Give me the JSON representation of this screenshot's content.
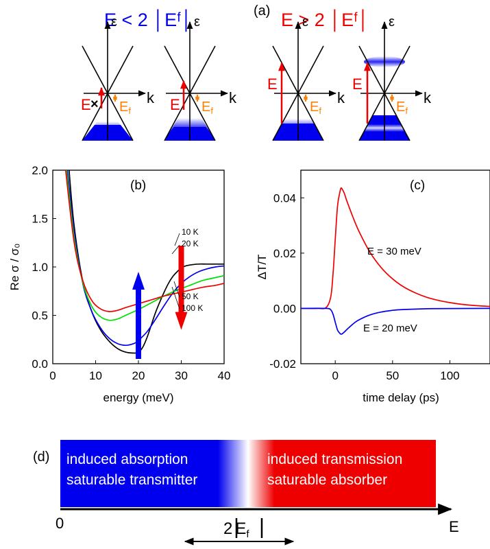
{
  "colors": {
    "blue": "#0000ee",
    "red": "#ee0000",
    "orange": "#ff7f00",
    "green": "#00dd00",
    "black": "#000000"
  },
  "panel_a": {
    "label": "(a)",
    "left_title": "E < 2 │Eᶠ│",
    "right_title": "E > 2 │Eᶠ│",
    "energy_axis": "ε",
    "momentum_axis": "k",
    "photon_label": "E",
    "fermi_label": "E",
    "fermi_sub": "f",
    "blocked_mark": "×"
  },
  "panel_d": {
    "label": "(d)",
    "left_line1": "induced absorption",
    "left_line2": "saturable transmitter",
    "right_line1": "induced transmission",
    "right_line2": "saturable absorber",
    "axis_start": "0",
    "axis_end": "E",
    "marker": "2",
    "marker_sym": "E",
    "marker_sub": "f"
  },
  "chart_data": [
    {
      "type": "line",
      "panel": "(b)",
      "xlabel": "energy (meV)",
      "ylabel": "Re σ / σ₀",
      "xlim": [
        0,
        40
      ],
      "ylim": [
        0.0,
        2.0
      ],
      "xticks": [
        "0",
        "10",
        "20",
        "30",
        "40"
      ],
      "yticks": [
        "0.0",
        "0.5",
        "1.0",
        "1.5",
        "2.0"
      ],
      "series": [
        {
          "name": "10 K",
          "color": "#000000",
          "x": [
            3.8,
            5,
            7,
            9,
            11,
            13,
            15,
            17,
            19,
            20,
            21,
            22,
            23,
            24,
            25,
            26,
            27,
            28,
            29,
            30,
            31,
            32,
            34,
            36,
            40
          ],
          "y": [
            2.0,
            1.42,
            0.85,
            0.55,
            0.36,
            0.24,
            0.16,
            0.12,
            0.11,
            0.12,
            0.17,
            0.27,
            0.4,
            0.53,
            0.64,
            0.74,
            0.83,
            0.9,
            0.95,
            0.99,
            1.01,
            1.02,
            1.03,
            1.03,
            1.03
          ]
        },
        {
          "name": "20 K",
          "color": "#0000ee",
          "x": [
            3.4,
            5,
            7,
            9,
            11,
            13,
            15,
            17,
            19,
            20,
            22,
            24,
            26,
            28,
            30,
            32,
            34,
            36,
            38,
            40
          ],
          "y": [
            2.0,
            1.36,
            0.83,
            0.55,
            0.38,
            0.27,
            0.21,
            0.19,
            0.21,
            0.24,
            0.33,
            0.46,
            0.6,
            0.73,
            0.83,
            0.9,
            0.95,
            0.98,
            1.0,
            1.01
          ]
        },
        {
          "name": "50 K",
          "color": "#00dd00",
          "x": [
            3.2,
            5,
            7,
            9,
            11,
            13,
            15,
            17,
            20,
            23,
            26,
            29,
            32,
            35,
            38,
            40
          ],
          "y": [
            2.0,
            1.3,
            0.84,
            0.6,
            0.49,
            0.45,
            0.46,
            0.5,
            0.56,
            0.63,
            0.7,
            0.76,
            0.81,
            0.86,
            0.89,
            0.91
          ]
        },
        {
          "name": "100 K",
          "color": "#ee0000",
          "x": [
            3.0,
            5,
            7,
            9,
            11,
            13,
            15,
            17,
            20,
            23,
            26,
            29,
            32,
            35,
            38,
            40
          ],
          "y": [
            2.0,
            1.25,
            0.86,
            0.66,
            0.57,
            0.54,
            0.55,
            0.58,
            0.62,
            0.66,
            0.7,
            0.73,
            0.76,
            0.79,
            0.81,
            0.83
          ]
        }
      ],
      "annotations": [
        {
          "text": "up arrow",
          "color": "#0000ee",
          "x": 20,
          "y_from": 0.05,
          "y_to": 0.95
        },
        {
          "text": "down arrow",
          "color": "#ee0000",
          "x": 30,
          "y_from": 1.22,
          "y_to": 0.35
        }
      ]
    },
    {
      "type": "line",
      "panel": "(c)",
      "xlabel": "time delay (ps)",
      "ylabel": "ΔT/T",
      "xlim": [
        -30,
        135
      ],
      "ylim": [
        -0.02,
        0.05
      ],
      "xticks": [
        "0",
        "50",
        "100"
      ],
      "yticks": [
        "-0.02",
        "0.00",
        "0.02",
        "0.04"
      ],
      "series": [
        {
          "name": "E = 30 meV",
          "color": "#ee0000",
          "x": [
            -30,
            -15,
            -8,
            -4,
            -2,
            0,
            2,
            4,
            5,
            6,
            8,
            10,
            15,
            20,
            30,
            40,
            50,
            60,
            70,
            80,
            90,
            100,
            110,
            120,
            135
          ],
          "y": [
            0,
            0,
            0.0003,
            0.004,
            0.012,
            0.025,
            0.037,
            0.042,
            0.0435,
            0.0432,
            0.0415,
            0.039,
            0.0335,
            0.0285,
            0.0205,
            0.0148,
            0.0107,
            0.0077,
            0.0056,
            0.004,
            0.0029,
            0.0021,
            0.0015,
            0.0011,
            0.0007
          ]
        },
        {
          "name": "E = 20 meV",
          "color": "#0000ee",
          "x": [
            -30,
            -8,
            -4,
            -2,
            0,
            2,
            4,
            5,
            6,
            8,
            10,
            15,
            20,
            30,
            40,
            50,
            60,
            80,
            100,
            135
          ],
          "y": [
            0,
            0,
            -0.0005,
            -0.002,
            -0.005,
            -0.0078,
            -0.009,
            -0.0093,
            -0.0092,
            -0.0085,
            -0.0077,
            -0.0058,
            -0.0043,
            -0.0024,
            -0.0013,
            -0.0007,
            -0.0004,
            -0.00012,
            -4e-05,
            0
          ]
        }
      ]
    }
  ]
}
